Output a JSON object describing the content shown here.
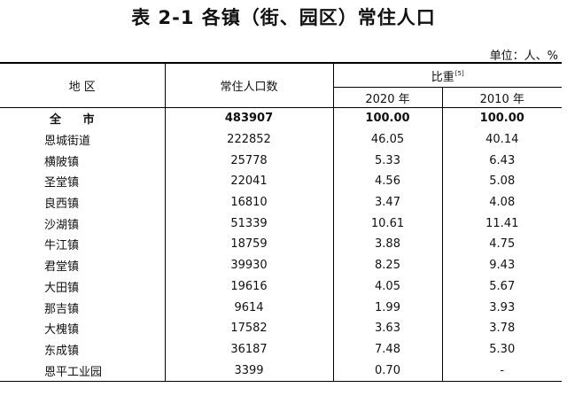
{
  "title": "表 2-1  各镇（街、园区）常住人口",
  "unit": "单位：人、%",
  "headers": {
    "region": "地 区",
    "population": "常住人口数",
    "share": "比重",
    "share_note": "[5]",
    "year_2020": "2020 年",
    "year_2010": "2010 年"
  },
  "rows": [
    {
      "name": "全 市",
      "pop": "483907",
      "p2020": "100.00",
      "p2010": "100.00"
    },
    {
      "name": "恩城街道",
      "pop": "222852",
      "p2020": "46.05",
      "p2010": "40.14"
    },
    {
      "name": "横陂镇",
      "pop": "25778",
      "p2020": "5.33",
      "p2010": "6.43"
    },
    {
      "name": "圣堂镇",
      "pop": "22041",
      "p2020": "4.56",
      "p2010": "5.08"
    },
    {
      "name": "良西镇",
      "pop": "16810",
      "p2020": "3.47",
      "p2010": "4.08"
    },
    {
      "name": "沙湖镇",
      "pop": "51339",
      "p2020": "10.61",
      "p2010": "11.41"
    },
    {
      "name": "牛江镇",
      "pop": "18759",
      "p2020": "3.88",
      "p2010": "4.75"
    },
    {
      "name": "君堂镇",
      "pop": "39930",
      "p2020": "8.25",
      "p2010": "9.43"
    },
    {
      "name": "大田镇",
      "pop": "19616",
      "p2020": "4.05",
      "p2010": "5.67"
    },
    {
      "name": "那吉镇",
      "pop": "9614",
      "p2020": "1.99",
      "p2010": "3.93"
    },
    {
      "name": "大槐镇",
      "pop": "17582",
      "p2020": "3.63",
      "p2010": "3.78"
    },
    {
      "name": "东成镇",
      "pop": "36187",
      "p2020": "7.48",
      "p2010": "5.30"
    },
    {
      "name": "恩平工业园",
      "pop": "3399",
      "p2020": "0.70",
      "p2010": "-"
    }
  ]
}
